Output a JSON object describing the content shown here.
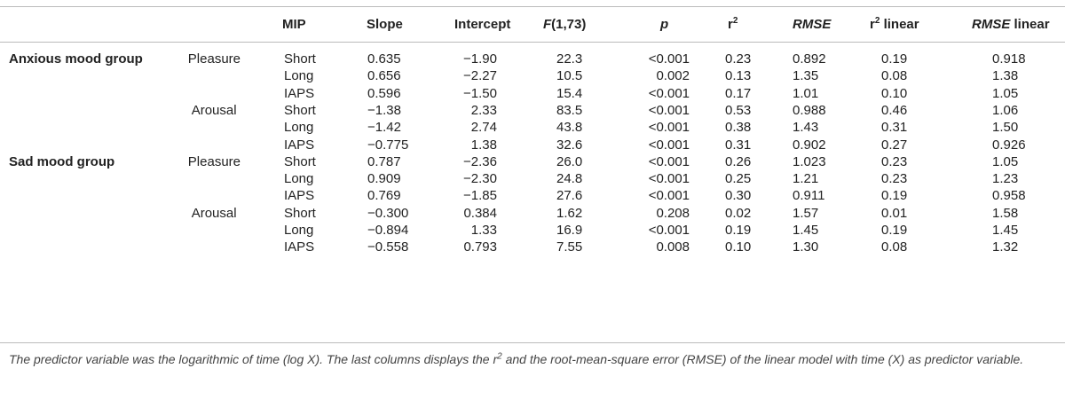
{
  "table": {
    "columns": [
      "MIP",
      "Slope",
      "Intercept",
      {
        "italic": "F",
        "text": "(1,73)"
      },
      {
        "italic": "p"
      },
      {
        "text": "r",
        "sup": "2"
      },
      {
        "italic": "RMSE"
      },
      {
        "text": "r",
        "sup": "2",
        "tail": " linear"
      },
      {
        "italic": "RMSE",
        "tail": " linear"
      }
    ],
    "groups": [
      {
        "name": "Anxious mood group",
        "dimensions": [
          {
            "name": "Pleasure",
            "rows": [
              [
                "Short",
                "0.635",
                "−1.90",
                "22.3",
                "<0.001",
                "0.23",
                "0.892",
                "0.19",
                "0.918"
              ],
              [
                "Long",
                "0.656",
                "−2.27",
                "10.5",
                "0.002",
                "0.13",
                "1.35",
                "0.08",
                "1.38"
              ],
              [
                "IAPS",
                "0.596",
                "−1.50",
                "15.4",
                "<0.001",
                "0.17",
                "1.01",
                "0.10",
                "1.05"
              ]
            ]
          },
          {
            "name": "Arousal",
            "rows": [
              [
                "Short",
                "−1.38",
                "2.33",
                "83.5",
                "<0.001",
                "0.53",
                "0.988",
                "0.46",
                "1.06"
              ],
              [
                "Long",
                "−1.42",
                "2.74",
                "43.8",
                "<0.001",
                "0.38",
                "1.43",
                "0.31",
                "1.50"
              ],
              [
                "IAPS",
                "−0.775",
                "1.38",
                "32.6",
                "<0.001",
                "0.31",
                "0.902",
                "0.27",
                "0.926"
              ]
            ]
          }
        ]
      },
      {
        "name": "Sad mood group",
        "dimensions": [
          {
            "name": "Pleasure",
            "rows": [
              [
                "Short",
                "0.787",
                "−2.36",
                "26.0",
                "<0.001",
                "0.26",
                "1.023",
                "0.23",
                "1.05"
              ],
              [
                "Long",
                "0.909",
                "−2.30",
                "24.8",
                "<0.001",
                "0.25",
                "1.21",
                "0.23",
                "1.23"
              ],
              [
                "IAPS",
                "0.769",
                "−1.85",
                "27.6",
                "<0.001",
                "0.30",
                "0.911",
                "0.19",
                "0.958"
              ]
            ]
          },
          {
            "name": "Arousal",
            "rows": [
              [
                "Short",
                "−0.300",
                "0.384",
                "1.62",
                "0.208",
                "0.02",
                "1.57",
                "0.01",
                "1.58"
              ],
              [
                "Long",
                "−0.894",
                "1.33",
                "16.9",
                "<0.001",
                "0.19",
                "1.45",
                "0.19",
                "1.45"
              ],
              [
                "IAPS",
                "−0.558",
                "0.793",
                "7.55",
                "0.008",
                "0.10",
                "1.30",
                "0.08",
                "1.32"
              ]
            ]
          }
        ]
      }
    ],
    "footnote": {
      "before": "The predictor variable was the logarithmic of time (log X). The last columns displays the r",
      "sup": "2",
      "after": " and the root-mean-square error (RMSE) of the linear model with time (X) as predictor variable."
    }
  }
}
